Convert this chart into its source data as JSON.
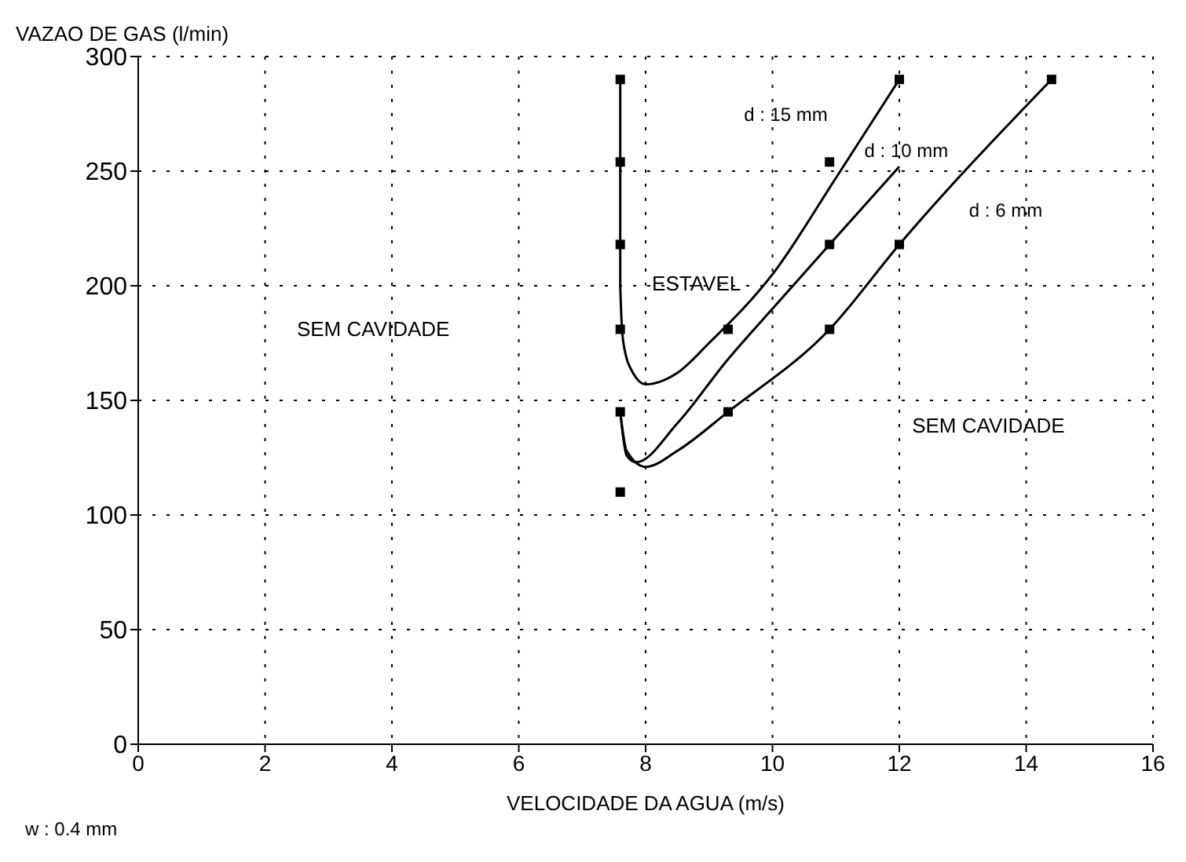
{
  "chart_data": {
    "type": "line",
    "xlabel": "VELOCIDADE DA AGUA (m/s)",
    "ylabel": "VAZAO DE GAS (l/min)",
    "xlim": [
      0,
      16
    ],
    "xticks": [
      0,
      2,
      4,
      6,
      8,
      10,
      12,
      14,
      16
    ],
    "ylim": [
      0,
      300
    ],
    "yticks": [
      0,
      50,
      100,
      150,
      200,
      250,
      300
    ],
    "grid": true,
    "line_style": "solid",
    "marker": "none",
    "series": [
      {
        "name": "d : 15 mm",
        "color": "#000000",
        "x": [
          7.6,
          7.6,
          7.65,
          7.8,
          8.0,
          8.5,
          9,
          10,
          11,
          12
        ],
        "values": [
          290,
          200,
          175,
          162,
          157,
          162,
          175,
          205,
          247,
          290
        ]
      },
      {
        "name": "d : 10 mm",
        "color": "#000000",
        "x": [
          7.6,
          7.7,
          7.85,
          8.5,
          9.3,
          10,
          10.9,
          12
        ],
        "values": [
          145,
          126,
          123,
          140,
          168,
          190,
          218,
          252
        ]
      },
      {
        "name": "d : 6 mm",
        "color": "#000000",
        "x": [
          7.6,
          7.7,
          8,
          8.5,
          9.3,
          10.9,
          12,
          14.4
        ],
        "values": [
          145,
          128,
          121,
          128,
          145,
          181,
          218,
          290
        ]
      },
      {
        "type": "scatter",
        "marker": "square",
        "color": "#000000",
        "x": [
          7.6,
          7.6,
          7.6,
          7.6,
          7.6,
          7.6,
          9.3,
          9.3,
          10.9,
          10.9,
          10.9,
          12,
          12,
          14.4
        ],
        "values": [
          290,
          254,
          218,
          181,
          145,
          110,
          181,
          145,
          254,
          218,
          181,
          290,
          218,
          290
        ]
      }
    ],
    "annotations": [
      "ESTAVEL",
      "SEM CAVIDADE",
      "SEM CAVIDADE",
      "w : 0.4 mm"
    ]
  }
}
